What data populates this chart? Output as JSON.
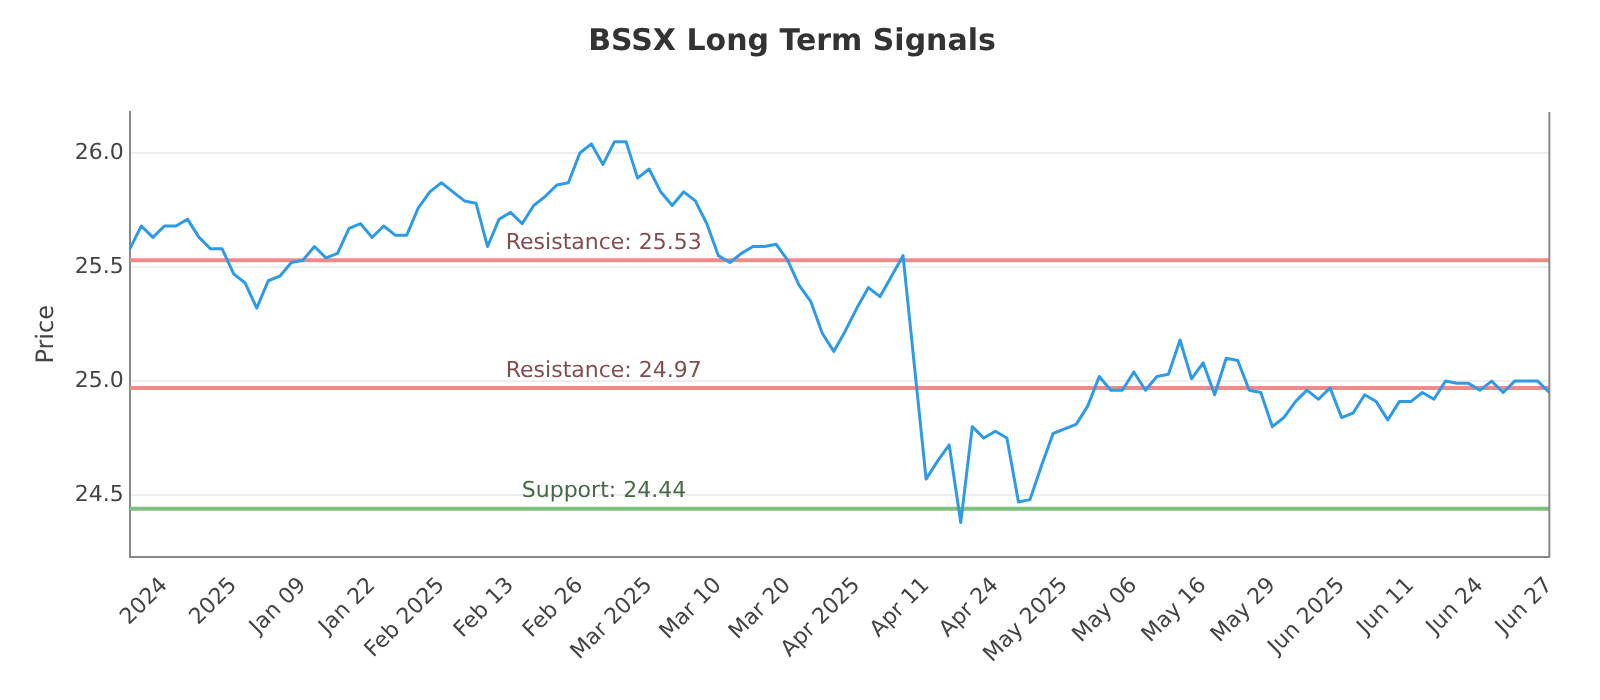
{
  "chart_data": {
    "type": "line",
    "title": "BSSX Long Term Signals",
    "ylabel": "Price",
    "categories": [
      null,
      null,
      null,
      "2024",
      null,
      null,
      null,
      null,
      null,
      "2025",
      null,
      null,
      null,
      null,
      null,
      "Jan 09",
      null,
      null,
      null,
      null,
      null,
      "Jan 22",
      null,
      null,
      null,
      null,
      null,
      "Feb 2025",
      null,
      null,
      null,
      null,
      null,
      "Feb 13",
      null,
      null,
      null,
      null,
      null,
      "Feb 26",
      null,
      null,
      null,
      null,
      null,
      "Mar 2025",
      null,
      null,
      null,
      null,
      null,
      "Mar 10",
      null,
      null,
      null,
      null,
      null,
      "Mar 20",
      null,
      null,
      null,
      null,
      null,
      "Apr 2025",
      null,
      null,
      null,
      null,
      null,
      "Apr 11",
      null,
      null,
      null,
      null,
      null,
      "Apr 24",
      null,
      null,
      null,
      null,
      null,
      "May 2025",
      null,
      null,
      null,
      null,
      null,
      "May 06",
      null,
      null,
      null,
      null,
      null,
      "May 16",
      null,
      null,
      null,
      null,
      null,
      "May 29",
      null,
      null,
      null,
      null,
      null,
      "Jun 2025",
      null,
      null,
      null,
      null,
      null,
      "Jun 11",
      null,
      null,
      null,
      null,
      null,
      "Jun 24",
      null,
      null,
      null,
      null,
      null,
      "Jun 27"
    ],
    "series": [
      {
        "color": "#2f9be6",
        "values": [
          25.58,
          25.68,
          25.63,
          25.68,
          25.68,
          25.71,
          25.63,
          25.58,
          25.58,
          25.47,
          25.43,
          25.32,
          25.44,
          25.46,
          25.52,
          25.53,
          25.59,
          25.54,
          25.56,
          25.67,
          25.69,
          25.63,
          25.68,
          25.64,
          25.64,
          25.76,
          25.83,
          25.87,
          25.83,
          25.79,
          25.78,
          25.59,
          25.71,
          25.74,
          25.69,
          25.77,
          25.81,
          25.86,
          25.87,
          26.0,
          26.04,
          25.95,
          26.05,
          26.05,
          25.89,
          25.93,
          25.83,
          25.77,
          25.83,
          25.79,
          25.69,
          25.55,
          25.52,
          25.56,
          25.59,
          25.59,
          25.6,
          25.53,
          25.42,
          25.35,
          25.21,
          25.13,
          25.22,
          25.32,
          25.41,
          25.37,
          25.46,
          25.55,
          25.06,
          24.57,
          24.65,
          24.72,
          24.38,
          24.8,
          24.75,
          24.78,
          24.75,
          24.47,
          24.48,
          24.63,
          24.77,
          24.79,
          24.81,
          24.89,
          25.02,
          24.96,
          24.96,
          25.04,
          24.96,
          25.02,
          25.03,
          25.18,
          25.01,
          25.08,
          24.94,
          25.1,
          25.09,
          24.96,
          24.95,
          24.8,
          24.84,
          24.91,
          24.96,
          24.92,
          24.97,
          24.84,
          24.86,
          24.94,
          24.91,
          24.83,
          24.91,
          24.91,
          24.95,
          24.92,
          25.0,
          24.99,
          24.99,
          24.96,
          25.0,
          24.95,
          25.0,
          25.0,
          25.0,
          24.95
        ]
      }
    ],
    "ylim": [
      24.23,
      26.18
    ],
    "yticks": [
      24.5,
      {
        "value": 25,
        "label": "25.0"
      },
      25.5,
      {
        "value": 26,
        "label": "26.0"
      }
    ],
    "grid": "y",
    "marker": "none",
    "line_style": "solid",
    "ref_lines": [
      {
        "axis": "y",
        "value": 25.53,
        "label": "Resistance: 25.53",
        "color": "#f08a8a"
      },
      {
        "axis": "y",
        "value": 24.97,
        "label": "Resistance: 24.97",
        "color": "#f08a8a"
      },
      {
        "axis": "y",
        "value": 24.44,
        "label": "Support: 24.44",
        "color": "#7fbf7f"
      }
    ]
  }
}
